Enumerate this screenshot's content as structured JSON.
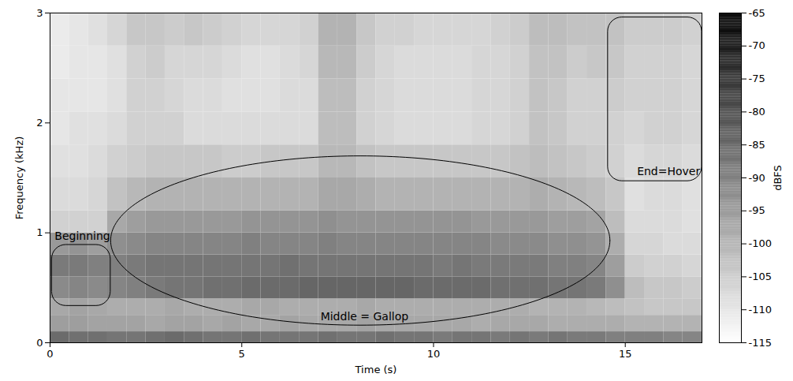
{
  "chart_data": {
    "type": "heatmap",
    "xlabel": "Time (s)",
    "ylabel": "Frequency (kHz)",
    "xlim": [
      0,
      17
    ],
    "xticks": [
      0,
      5,
      10,
      15
    ],
    "ylim": [
      0,
      3
    ],
    "yticks": [
      0,
      1,
      2,
      3
    ],
    "x_edges": [
      0,
      0.5,
      1,
      1.5,
      2,
      2.5,
      3,
      3.5,
      4,
      4.5,
      5,
      5.5,
      6,
      6.5,
      7,
      7.5,
      8,
      8.5,
      9,
      9.5,
      10,
      10.5,
      11,
      11.5,
      12,
      12.5,
      13,
      13.5,
      14,
      14.5,
      15,
      15.5,
      16,
      16.5,
      17
    ],
    "y_edges": [
      0,
      0.1,
      0.25,
      0.4,
      0.6,
      0.8,
      1.0,
      1.2,
      1.5,
      1.8,
      2.1,
      2.4,
      2.7,
      3.0
    ],
    "cells": [
      [
        -86,
        -87,
        -87,
        -88,
        -88,
        -87,
        -86,
        -87,
        -88,
        -88,
        -87,
        -88,
        -88,
        -88,
        -87,
        -88,
        -88,
        -87,
        -88,
        -88,
        -89,
        -88,
        -88,
        -89,
        -88,
        -89,
        -88,
        -89,
        -89,
        -90,
        -90,
        -90,
        -91,
        -91
      ],
      [
        -96,
        -96,
        -97,
        -97,
        -97,
        -98,
        -97,
        -97,
        -98,
        -97,
        -98,
        -98,
        -97,
        -98,
        -98,
        -98,
        -97,
        -98,
        -98,
        -98,
        -98,
        -98,
        -99,
        -98,
        -98,
        -98,
        -99,
        -99,
        -99,
        -99,
        -100,
        -100,
        -100,
        -100
      ],
      [
        -98,
        -97,
        -98,
        -99,
        -99,
        -99,
        -98,
        -99,
        -99,
        -99,
        -98,
        -98,
        -99,
        -99,
        -99,
        -99,
        -98,
        -99,
        -99,
        -99,
        -99,
        -99,
        -99,
        -99,
        -99,
        -100,
        -100,
        -100,
        -101,
        -102,
        -103,
        -104,
        -104,
        -104
      ],
      [
        -92,
        -91,
        -92,
        -91,
        -90,
        -89,
        -88,
        -88,
        -87,
        -87,
        -86,
        -86,
        -86,
        -85,
        -85,
        -85,
        -85,
        -85,
        -85,
        -86,
        -86,
        -86,
        -86,
        -87,
        -87,
        -87,
        -88,
        -88,
        -89,
        -93,
        -102,
        -104,
        -104,
        -105
      ],
      [
        -89,
        -89,
        -90,
        -90,
        -89,
        -88,
        -88,
        -88,
        -88,
        -88,
        -88,
        -88,
        -87,
        -88,
        -88,
        -88,
        -88,
        -88,
        -88,
        -88,
        -89,
        -88,
        -89,
        -89,
        -89,
        -89,
        -90,
        -90,
        -91,
        -96,
        -105,
        -106,
        -106,
        -107
      ],
      [
        -95,
        -94,
        -96,
        -93,
        -92,
        -91,
        -91,
        -91,
        -91,
        -91,
        -90,
        -91,
        -91,
        -91,
        -90,
        -91,
        -91,
        -91,
        -91,
        -91,
        -91,
        -91,
        -91,
        -92,
        -92,
        -92,
        -93,
        -93,
        -94,
        -99,
        -107,
        -107,
        -108,
        -108
      ],
      [
        -106,
        -106,
        -106,
        -98,
        -96,
        -95,
        -95,
        -95,
        -95,
        -95,
        -94,
        -94,
        -94,
        -94,
        -93,
        -94,
        -94,
        -94,
        -94,
        -94,
        -94,
        -94,
        -95,
        -95,
        -95,
        -95,
        -96,
        -96,
        -97,
        -102,
        -108,
        -108,
        -108,
        -109
      ],
      [
        -108,
        -108,
        -107,
        -103,
        -101,
        -100,
        -100,
        -100,
        -100,
        -100,
        -100,
        -100,
        -100,
        -100,
        -98,
        -98,
        -99,
        -100,
        -100,
        -100,
        -100,
        -100,
        -100,
        -100,
        -100,
        -99,
        -100,
        -101,
        -102,
        -104,
        -109,
        -108,
        -108,
        -109
      ],
      [
        -109,
        -109,
        -108,
        -106,
        -105,
        -104,
        -104,
        -104,
        -104,
        -105,
        -105,
        -104,
        -104,
        -104,
        -101,
        -101,
        -103,
        -104,
        -104,
        -104,
        -104,
        -104,
        -104,
        -104,
        -103,
        -102,
        -103,
        -104,
        -105,
        -106,
        -108,
        -107,
        -107,
        -108
      ],
      [
        -110,
        -109,
        -109,
        -108,
        -106,
        -106,
        -106,
        -108,
        -108,
        -108,
        -108,
        -108,
        -108,
        -108,
        -102,
        -102,
        -106,
        -107,
        -108,
        -108,
        -108,
        -108,
        -107,
        -107,
        -106,
        -103,
        -104,
        -106,
        -106,
        -106,
        -107,
        -106,
        -106,
        -107
      ],
      [
        -110,
        -110,
        -110,
        -109,
        -106,
        -106,
        -107,
        -108,
        -108,
        -109,
        -109,
        -109,
        -108,
        -108,
        -102,
        -102,
        -106,
        -107,
        -108,
        -108,
        -108,
        -108,
        -107,
        -107,
        -106,
        -103,
        -104,
        -106,
        -106,
        -105,
        -106,
        -106,
        -106,
        -107
      ],
      [
        -111,
        -110,
        -110,
        -109,
        -106,
        -105,
        -107,
        -107,
        -107,
        -108,
        -109,
        -109,
        -108,
        -107,
        -101,
        -101,
        -105,
        -107,
        -108,
        -108,
        -108,
        -108,
        -107,
        -107,
        -106,
        -103,
        -103,
        -105,
        -104,
        -104,
        -106,
        -106,
        -106,
        -107
      ],
      [
        -111,
        -110,
        -109,
        -107,
        -104,
        -104,
        -105,
        -104,
        -105,
        -106,
        -107,
        -107,
        -107,
        -106,
        -100,
        -100,
        -104,
        -106,
        -106,
        -107,
        -107,
        -107,
        -107,
        -106,
        -105,
        -102,
        -102,
        -103,
        -103,
        -103,
        -105,
        -105,
        -105,
        -106
      ]
    ],
    "colorbar": {
      "label": "dBFS",
      "range": [
        -115,
        -65
      ],
      "ticks": [
        -65,
        -70,
        -75,
        -80,
        -85,
        -90,
        -95,
        -100,
        -105,
        -110,
        -115
      ]
    },
    "annotations": [
      {
        "text": "Beginning",
        "shape": "rect",
        "x_range": [
          0.05,
          1.58
        ],
        "y_range": [
          0.335,
          0.89
        ],
        "x": 0.12,
        "y": 0.97
      },
      {
        "text": "Middle = Gallop",
        "shape": "ellipse",
        "x_range": [
          1.58,
          14.6
        ],
        "y_range": [
          0.16,
          1.7
        ],
        "x": 8.2,
        "y": 0.235
      },
      {
        "text": "End=Hover",
        "shape": "rect",
        "x_range": [
          14.55,
          17.0
        ],
        "y_range": [
          1.47,
          2.96
        ],
        "x": 16.13,
        "y": 1.56
      }
    ]
  }
}
